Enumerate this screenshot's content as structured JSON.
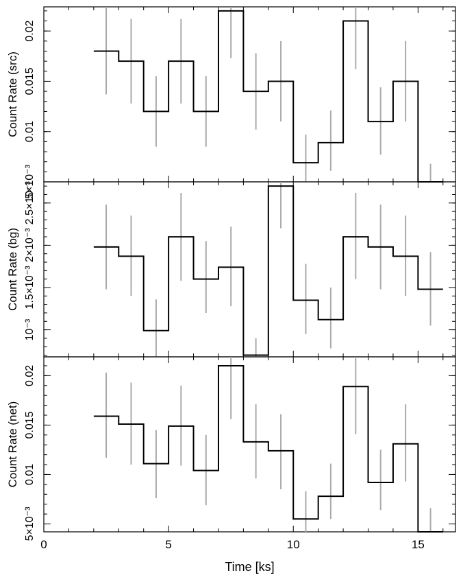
{
  "chart_data": [
    {
      "type": "line",
      "panel": "src",
      "ylabel": "Count Rate (src)",
      "ylim": [
        0.005,
        0.0224
      ],
      "yticks": [
        {
          "v": 0.005,
          "label": "5×10⁻³"
        },
        {
          "v": 0.01,
          "label": "0.01"
        },
        {
          "v": 0.015,
          "label": "0.015"
        },
        {
          "v": 0.02,
          "label": "0.02"
        }
      ],
      "series": [
        {
          "bin_edges": [
            2.0,
            3.0,
            4.0,
            5.0,
            6.0,
            7.0,
            8.0,
            9.0,
            10.0,
            11.0,
            12.0,
            13.0,
            14.0,
            15.0,
            16.0
          ],
          "values": [
            0.018,
            0.017,
            0.012,
            0.017,
            0.012,
            0.022,
            0.014,
            0.015,
            0.0069,
            0.0089,
            0.021,
            0.011,
            0.015,
            0.005
          ],
          "err_lo": [
            0.0137,
            0.0128,
            0.0085,
            0.0128,
            0.0085,
            0.0173,
            0.0102,
            0.011,
            0.0045,
            0.0061,
            0.0162,
            0.0077,
            0.011,
            0.0037
          ],
          "err_hi": [
            0.0225,
            0.0212,
            0.0155,
            0.0212,
            0.0155,
            0.0235,
            0.0178,
            0.019,
            0.0097,
            0.0121,
            0.0224,
            0.0144,
            0.019,
            0.0068
          ]
        }
      ]
    },
    {
      "type": "line",
      "panel": "bg",
      "ylabel": "Count Rate (bg)",
      "ylim": [
        0.00068,
        0.00275
      ],
      "yticks": [
        {
          "v": 0.001,
          "label": "10⁻³"
        },
        {
          "v": 0.0015,
          "label": "1.5×10⁻³"
        },
        {
          "v": 0.002,
          "label": "2×10⁻³"
        },
        {
          "v": 0.0025,
          "label": "2.5×10⁻³"
        }
      ],
      "series": [
        {
          "bin_edges": [
            2.0,
            3.0,
            4.0,
            5.0,
            6.0,
            7.0,
            8.0,
            9.0,
            10.0,
            11.0,
            12.0,
            13.0,
            14.0,
            15.0,
            16.0
          ],
          "values": [
            0.00198,
            0.00187,
            0.00099,
            0.0021,
            0.0016,
            0.00174,
            0.0007,
            0.0027,
            0.00135,
            0.00112,
            0.0021,
            0.00198,
            0.00187,
            0.00148
          ],
          "err_lo": [
            0.00148,
            0.0014,
            0.00063,
            0.00158,
            0.0012,
            0.00128,
            0.00068,
            0.0022,
            0.00095,
            0.00078,
            0.0016,
            0.00148,
            0.0014,
            0.00105
          ],
          "err_hi": [
            0.00248,
            0.00235,
            0.00136,
            0.00262,
            0.00205,
            0.00222,
            0.0009,
            0.00275,
            0.00178,
            0.0015,
            0.00262,
            0.00248,
            0.00235,
            0.00192
          ]
        }
      ]
    },
    {
      "type": "line",
      "panel": "net",
      "ylabel": "Count Rate (net)",
      "ylim": [
        0.0042,
        0.0219
      ],
      "yticks": [
        {
          "v": 0.005,
          "label": "5×10⁻³"
        },
        {
          "v": 0.01,
          "label": "0.01"
        },
        {
          "v": 0.015,
          "label": "0.015"
        },
        {
          "v": 0.02,
          "label": "0.02"
        }
      ],
      "series": [
        {
          "bin_edges": [
            2.0,
            3.0,
            4.0,
            5.0,
            6.0,
            7.0,
            8.0,
            9.0,
            10.0,
            11.0,
            12.0,
            13.0,
            14.0,
            15.0,
            16.0
          ],
          "values": [
            0.0159,
            0.0151,
            0.0111,
            0.0149,
            0.0104,
            0.021,
            0.0133,
            0.0124,
            0.0055,
            0.0078,
            0.0189,
            0.0092,
            0.0131,
            0.0042
          ],
          "err_lo": [
            0.0117,
            0.011,
            0.0076,
            0.0109,
            0.0069,
            0.0156,
            0.0096,
            0.0085,
            0.0042,
            0.0055,
            0.0141,
            0.0064,
            0.0093,
            0.0042
          ],
          "err_hi": [
            0.0203,
            0.0193,
            0.0145,
            0.019,
            0.014,
            0.0219,
            0.0171,
            0.0161,
            0.0083,
            0.0111,
            0.0219,
            0.0125,
            0.0171,
            0.0066
          ]
        }
      ]
    }
  ],
  "xaxis": {
    "xlabel": "Time [ks]",
    "xlim": [
      0,
      16.5
    ],
    "xticks": [
      {
        "v": 0,
        "label": "0"
      },
      {
        "v": 5,
        "label": "5"
      },
      {
        "v": 10,
        "label": "10"
      },
      {
        "v": 15,
        "label": "15"
      }
    ]
  },
  "colors": {
    "step": "#000000",
    "error_bar": "#aaaaaa",
    "axes": "#000000"
  }
}
